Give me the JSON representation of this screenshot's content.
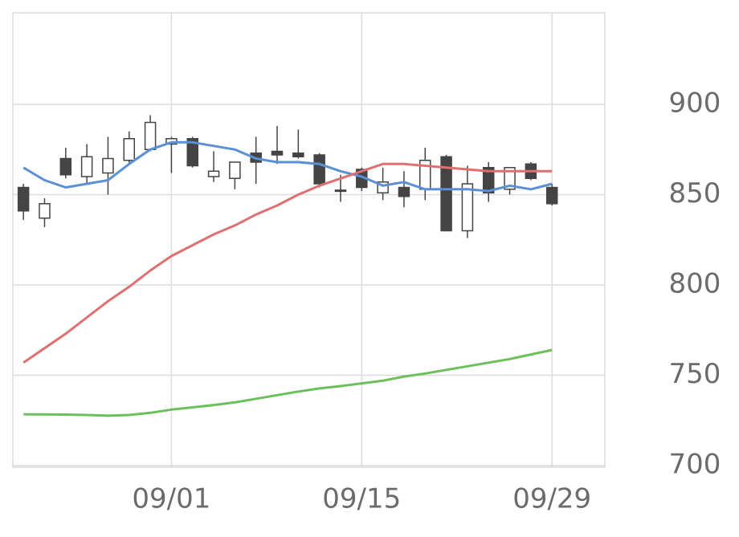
{
  "chart_data": {
    "type": "candlestick",
    "categories": [
      null,
      null,
      null,
      null,
      null,
      null,
      null,
      "09/01",
      null,
      null,
      null,
      null,
      null,
      null,
      null,
      null,
      "09/15",
      null,
      null,
      null,
      null,
      null,
      null,
      null,
      null,
      "09/29"
    ],
    "open": [
      854,
      837,
      870,
      860,
      862,
      869,
      875,
      878,
      881,
      860,
      859,
      873,
      874,
      873,
      872,
      852.5,
      864,
      851,
      854,
      853,
      871,
      830,
      865,
      853,
      867,
      854
    ],
    "high": [
      856,
      848,
      876,
      878,
      882,
      885,
      894,
      882,
      882,
      874,
      868,
      882,
      888,
      886,
      873,
      861,
      865,
      865,
      863,
      876,
      872,
      866,
      868,
      865,
      868,
      856
    ],
    "low": [
      836,
      832,
      859,
      856,
      850,
      867,
      874,
      862,
      865,
      857,
      853,
      856,
      867,
      870,
      854,
      846,
      852,
      847,
      843,
      847,
      830,
      826,
      846,
      850,
      858,
      844
    ],
    "close": [
      841,
      845,
      861,
      871,
      870,
      881,
      890,
      881,
      866,
      863,
      868,
      868,
      872,
      871,
      856,
      852,
      854,
      857,
      849,
      869,
      830,
      856,
      851,
      865,
      859,
      845
    ],
    "up_color": "#ffffff",
    "down_color": "#444444",
    "candle_stroke": "#444444",
    "series": [
      {
        "color": "#5b8fd6",
        "values": [
          865,
          858,
          854,
          856,
          858,
          867,
          875,
          879,
          879,
          877,
          875,
          870,
          868,
          868,
          867,
          863,
          860,
          855,
          857,
          853,
          853,
          853,
          852,
          855,
          853,
          856
        ]
      },
      {
        "color": "#e07070",
        "values": [
          757,
          765,
          773,
          782,
          791,
          799,
          808,
          816,
          822,
          828,
          833,
          839,
          844,
          850,
          855,
          859,
          863,
          867,
          867,
          866,
          865,
          864,
          863,
          863,
          863,
          863
        ]
      },
      {
        "color": "#6cbf5a",
        "values": [
          728.4,
          728.3,
          728.2,
          728,
          727.6,
          728,
          729.2,
          731,
          732.2,
          733.5,
          735,
          737,
          739,
          741,
          742.7,
          744,
          745.5,
          747,
          749.3,
          751,
          753,
          755,
          757,
          759,
          761.5,
          764
        ]
      }
    ],
    "ylim": [
      700,
      950
    ],
    "yticks": [
      700,
      750,
      800,
      850,
      900
    ],
    "grid": true
  }
}
